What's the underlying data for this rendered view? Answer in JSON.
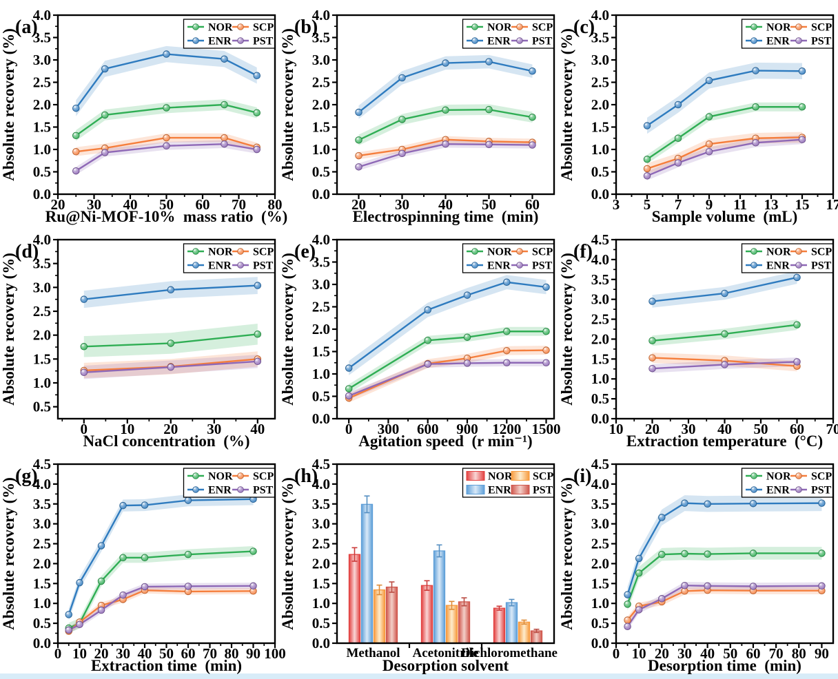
{
  "page": {
    "background": "#ffffff",
    "bottom_strip_color": "#d8ecf8",
    "ylabel_shared": "Absolute recovery (%)",
    "legend_labels": [
      "NOR",
      "SCP",
      "ENR",
      "PST"
    ]
  },
  "style": {
    "line_colors": {
      "NOR": "#2fae54",
      "SCP": "#f57e3c",
      "ENR": "#2e7bbf",
      "PST": "#8e68b6"
    },
    "band_opacity": 0.2,
    "bar_colors": {
      "NOR": {
        "edge": "#e2403f",
        "light": "#f9d6d6"
      },
      "ENR": {
        "edge": "#5e9fd8",
        "light": "#d9e9f8"
      },
      "SCP": {
        "edge": "#f79a3d",
        "light": "#fdeccd"
      },
      "PST": {
        "edge": "#cf564c",
        "light": "#f3cfc8"
      }
    }
  },
  "chart_data": [
    {
      "panel": "(a)",
      "type": "line",
      "xlabel": "Ru@Ni-MOF-10%  mass ratio  (%)",
      "ylabel": "Absolute recovery (%)",
      "xlim": [
        20,
        80
      ],
      "xticks": [
        20,
        30,
        40,
        50,
        60,
        70,
        80
      ],
      "ylim": [
        0,
        4.0
      ],
      "ytick_start": 0,
      "legend": [
        "NOR",
        "SCP",
        "ENR",
        "PST"
      ],
      "x": [
        25,
        33,
        50,
        66,
        75
      ],
      "series": [
        {
          "name": "NOR",
          "band": 0.12,
          "values": [
            1.31,
            1.77,
            1.93,
            2.0,
            1.82
          ]
        },
        {
          "name": "SCP",
          "band": 0.1,
          "values": [
            0.95,
            1.03,
            1.26,
            1.26,
            1.05
          ]
        },
        {
          "name": "ENR",
          "band": 0.18,
          "values": [
            1.92,
            2.8,
            3.13,
            3.02,
            2.65
          ]
        },
        {
          "name": "PST",
          "band": 0.09,
          "values": [
            0.52,
            0.93,
            1.08,
            1.12,
            1.0
          ]
        }
      ]
    },
    {
      "panel": "(b)",
      "type": "line",
      "xlabel": "Electrospinning time  (min)",
      "ylabel": "Absolute recovery (%)",
      "xlim": [
        15,
        65
      ],
      "xticks": [
        20,
        30,
        40,
        50,
        60
      ],
      "ylim": [
        0,
        4.0
      ],
      "ytick_start": 0,
      "legend": [
        "NOR",
        "SCP",
        "ENR",
        "PST"
      ],
      "x": [
        20,
        30,
        40,
        50,
        60
      ],
      "series": [
        {
          "name": "NOR",
          "band": 0.12,
          "values": [
            1.21,
            1.67,
            1.88,
            1.89,
            1.72
          ]
        },
        {
          "name": "SCP",
          "band": 0.08,
          "values": [
            0.86,
            1.0,
            1.22,
            1.18,
            1.16
          ]
        },
        {
          "name": "ENR",
          "band": 0.15,
          "values": [
            1.83,
            2.6,
            2.93,
            2.96,
            2.75
          ]
        },
        {
          "name": "PST",
          "band": 0.08,
          "values": [
            0.61,
            0.91,
            1.12,
            1.11,
            1.1
          ]
        }
      ]
    },
    {
      "panel": "(c)",
      "type": "line",
      "xlabel": "Sample volume  (mL)",
      "ylabel": "Absolute recovery (%)",
      "xlim": [
        3,
        17
      ],
      "xticks": [
        3,
        5,
        7,
        9,
        11,
        13,
        15,
        17
      ],
      "ylim": [
        0,
        4.0
      ],
      "ytick_start": 0,
      "legend": [
        "NOR",
        "SCP",
        "ENR",
        "PST"
      ],
      "x": [
        5,
        7,
        9,
        12,
        15
      ],
      "series": [
        {
          "name": "NOR",
          "band": 0.1,
          "values": [
            0.78,
            1.25,
            1.73,
            1.95,
            1.95
          ]
        },
        {
          "name": "SCP",
          "band": 0.12,
          "values": [
            0.57,
            0.8,
            1.12,
            1.25,
            1.27
          ]
        },
        {
          "name": "ENR",
          "band": 0.18,
          "values": [
            1.53,
            2.0,
            2.54,
            2.76,
            2.75
          ]
        },
        {
          "name": "PST",
          "band": 0.1,
          "values": [
            0.41,
            0.7,
            0.95,
            1.15,
            1.22
          ]
        }
      ]
    },
    {
      "panel": "(d)",
      "type": "line",
      "xlabel": "NaCl concentration  (%)",
      "ylabel": "Absolute recovery (%)",
      "xlim": [
        -6,
        44
      ],
      "xticks": [
        0,
        10,
        20,
        30,
        40
      ],
      "ylim": [
        0.25,
        4.0
      ],
      "ytick_start": 0.5,
      "legend": [
        "NOR",
        "SCP",
        "ENR",
        "PST"
      ],
      "x": [
        0,
        20,
        40
      ],
      "series": [
        {
          "name": "NOR",
          "band": 0.22,
          "values": [
            1.76,
            1.83,
            2.02
          ]
        },
        {
          "name": "SCP",
          "band": 0.16,
          "values": [
            1.26,
            1.34,
            1.5
          ]
        },
        {
          "name": "ENR",
          "band": 0.18,
          "values": [
            2.75,
            2.95,
            3.04
          ]
        },
        {
          "name": "PST",
          "band": 0.14,
          "values": [
            1.22,
            1.33,
            1.45
          ]
        }
      ]
    },
    {
      "panel": "(e)",
      "type": "line",
      "xlabel": "Agitation speed  (r min⁻¹)",
      "ylabel": "Absolute recovery (%)",
      "xlim": [
        -90,
        1560
      ],
      "xticks": [
        0,
        300,
        600,
        900,
        1200,
        1500
      ],
      "ylim": [
        0,
        4.0
      ],
      "ytick_start": 0,
      "legend": [
        "NOR",
        "SCP",
        "ENR",
        "PST"
      ],
      "x": [
        0,
        600,
        900,
        1200,
        1500
      ],
      "series": [
        {
          "name": "NOR",
          "band": 0.1,
          "values": [
            0.67,
            1.75,
            1.82,
            1.95,
            1.95
          ]
        },
        {
          "name": "SCP",
          "band": 0.1,
          "values": [
            0.46,
            1.23,
            1.35,
            1.52,
            1.53
          ]
        },
        {
          "name": "ENR",
          "band": 0.16,
          "values": [
            1.13,
            2.43,
            2.76,
            3.05,
            2.94
          ]
        },
        {
          "name": "PST",
          "band": 0.08,
          "values": [
            0.51,
            1.22,
            1.24,
            1.25,
            1.25
          ]
        }
      ]
    },
    {
      "panel": "(f)",
      "type": "line",
      "xlabel": "Extraction temperature  (°C)",
      "ylabel": "Absolute recovery (%)",
      "xlim": [
        10,
        70
      ],
      "xticks": [
        10,
        20,
        30,
        40,
        50,
        60,
        70
      ],
      "ylim": [
        0,
        4.5
      ],
      "ytick_start": 0,
      "legend": [
        "NOR",
        "SCP",
        "ENR",
        "PST"
      ],
      "x": [
        20,
        40,
        60
      ],
      "series": [
        {
          "name": "NOR",
          "band": 0.13,
          "values": [
            1.96,
            2.13,
            2.36
          ]
        },
        {
          "name": "SCP",
          "band": 0.13,
          "values": [
            1.53,
            1.46,
            1.32
          ]
        },
        {
          "name": "ENR",
          "band": 0.16,
          "values": [
            2.95,
            3.15,
            3.55
          ]
        },
        {
          "name": "PST",
          "band": 0.11,
          "values": [
            1.26,
            1.36,
            1.43
          ]
        }
      ]
    },
    {
      "panel": "(g)",
      "type": "line",
      "xlabel": "Extraction time  (min)",
      "ylabel": "Absolute recovery (%)",
      "xlim": [
        0,
        100
      ],
      "xticks": [
        0,
        10,
        20,
        30,
        40,
        50,
        60,
        70,
        80,
        90,
        100
      ],
      "ylim": [
        0,
        4.5
      ],
      "ytick_start": 0,
      "legend": [
        "NOR",
        "SCP",
        "ENR",
        "PST"
      ],
      "x": [
        5,
        10,
        20,
        30,
        40,
        60,
        90
      ],
      "series": [
        {
          "name": "NOR",
          "band": 0.13,
          "values": [
            0.38,
            0.5,
            1.56,
            2.15,
            2.15,
            2.23,
            2.31
          ]
        },
        {
          "name": "SCP",
          "band": 0.08,
          "values": [
            0.3,
            0.53,
            0.95,
            1.1,
            1.33,
            1.3,
            1.31
          ]
        },
        {
          "name": "ENR",
          "band": 0.15,
          "values": [
            0.72,
            1.52,
            2.45,
            3.46,
            3.47,
            3.59,
            3.62
          ]
        },
        {
          "name": "PST",
          "band": 0.08,
          "values": [
            0.33,
            0.47,
            0.83,
            1.21,
            1.42,
            1.43,
            1.44
          ]
        }
      ]
    },
    {
      "panel": "(h)",
      "type": "bar",
      "xlabel": "Desorption solvent",
      "ylabel": "Absolute recovery (%)",
      "ylim": [
        0,
        4.5
      ],
      "ytick_start": 0,
      "legend": [
        "NOR",
        "SCP",
        "ENR",
        "PST"
      ],
      "categories": [
        "Methanol",
        "Acetonitrile",
        "Dichloromethane"
      ],
      "series": [
        {
          "name": "NOR",
          "values": [
            2.23,
            1.45,
            0.88
          ],
          "err": [
            0.17,
            0.12,
            0.05
          ]
        },
        {
          "name": "ENR",
          "values": [
            3.49,
            2.32,
            1.02
          ],
          "err": [
            0.21,
            0.15,
            0.08
          ]
        },
        {
          "name": "SCP",
          "values": [
            1.34,
            0.95,
            0.53
          ],
          "err": [
            0.12,
            0.1,
            0.05
          ]
        },
        {
          "name": "PST",
          "values": [
            1.41,
            1.04,
            0.31
          ],
          "err": [
            0.13,
            0.1,
            0.04
          ]
        }
      ]
    },
    {
      "panel": "(i)",
      "type": "line",
      "xlabel": "Desorption time  (min)",
      "ylabel": "Absolute recovery (%)",
      "xlim": [
        0,
        95
      ],
      "xticks": [
        0,
        10,
        20,
        30,
        40,
        50,
        60,
        70,
        80,
        90
      ],
      "ylim": [
        0,
        4.5
      ],
      "ytick_start": 0,
      "legend": [
        "NOR",
        "SCP",
        "ENR",
        "PST"
      ],
      "x": [
        5,
        10,
        20,
        30,
        40,
        60,
        90
      ],
      "series": [
        {
          "name": "NOR",
          "band": 0.16,
          "values": [
            0.98,
            1.76,
            2.23,
            2.25,
            2.24,
            2.26,
            2.26
          ]
        },
        {
          "name": "SCP",
          "band": 0.09,
          "values": [
            0.58,
            0.93,
            1.04,
            1.31,
            1.33,
            1.32,
            1.32
          ]
        },
        {
          "name": "ENR",
          "band": 0.2,
          "values": [
            1.22,
            2.13,
            3.16,
            3.52,
            3.5,
            3.51,
            3.52
          ]
        },
        {
          "name": "PST",
          "band": 0.09,
          "values": [
            0.42,
            0.84,
            1.12,
            1.45,
            1.44,
            1.43,
            1.44
          ]
        }
      ]
    }
  ]
}
